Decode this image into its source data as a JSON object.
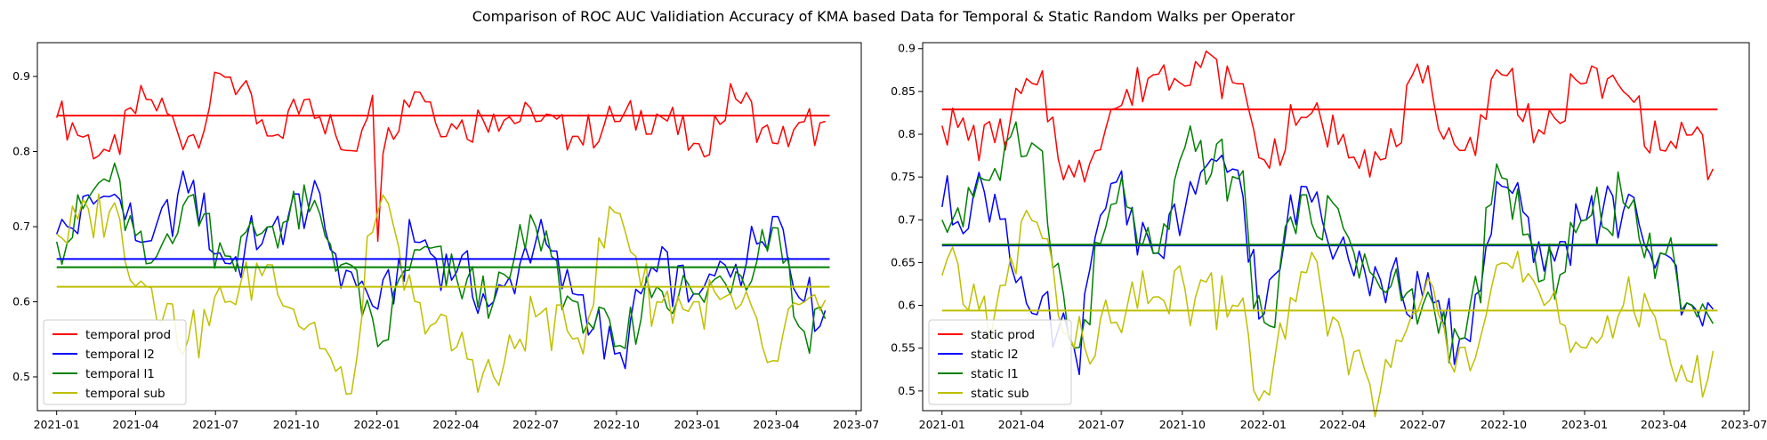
{
  "figure": {
    "title": "Comparison of ROC AUC Validiation Accuracy of KMA based Data for Temporal & Static Random Walks per Operator"
  },
  "chart_data": [
    {
      "type": "line",
      "title": "",
      "xlabel": "",
      "ylabel": "",
      "x_range": [
        "2020-12-10",
        "2023-07-07"
      ],
      "ylim": [
        0.455,
        0.945
      ],
      "x_ticks": [
        "2021-01",
        "2021-04",
        "2021-07",
        "2021-10",
        "2022-01",
        "2022-04",
        "2022-07",
        "2022-10",
        "2023-01",
        "2023-04",
        "2023-07"
      ],
      "y_ticks": [
        0.5,
        0.6,
        0.7,
        0.8,
        0.9
      ],
      "grid": false,
      "legend": "lower-left",
      "series": [
        {
          "name": "temporal prod",
          "color": "#ff0000",
          "mean": 0.848,
          "dates": [
            "2021-01-01",
            "2021-03-01",
            "2021-04-15",
            "2021-06-01",
            "2021-07-15",
            "2021-09-01",
            "2021-10-15",
            "2021-12-01",
            "2021-12-28",
            "2022-01-03",
            "2022-01-10",
            "2022-02-15",
            "2022-04-01",
            "2022-05-15",
            "2022-07-01",
            "2022-08-15",
            "2022-10-01",
            "2022-11-15",
            "2023-01-01",
            "2023-02-15",
            "2023-04-01",
            "2023-05-01",
            "2023-06-01"
          ],
          "values": [
            0.845,
            0.8,
            0.87,
            0.82,
            0.9,
            0.82,
            0.87,
            0.8,
            0.875,
            0.665,
            0.83,
            0.88,
            0.83,
            0.85,
            0.84,
            0.82,
            0.84,
            0.85,
            0.81,
            0.87,
            0.81,
            0.84,
            0.82
          ]
        },
        {
          "name": "temporal l2",
          "color": "#0000ff",
          "mean": 0.657,
          "dates": [
            "2021-01-01",
            "2021-03-01",
            "2021-04-15",
            "2021-06-01",
            "2021-07-15",
            "2021-09-01",
            "2021-10-15",
            "2021-12-01",
            "2022-01-01",
            "2022-02-15",
            "2022-04-01",
            "2022-05-15",
            "2022-07-01",
            "2022-08-15",
            "2022-10-01",
            "2022-11-15",
            "2023-01-01",
            "2023-02-15",
            "2023-04-01",
            "2023-05-01",
            "2023-06-01"
          ],
          "values": [
            0.69,
            0.74,
            0.68,
            0.745,
            0.65,
            0.7,
            0.73,
            0.64,
            0.59,
            0.68,
            0.64,
            0.6,
            0.68,
            0.61,
            0.53,
            0.64,
            0.61,
            0.65,
            0.715,
            0.6,
            0.585
          ]
        },
        {
          "name": "temporal l1",
          "color": "#008000",
          "mean": 0.646,
          "dates": [
            "2021-01-01",
            "2021-03-01",
            "2021-04-15",
            "2021-06-01",
            "2021-07-15",
            "2021-09-01",
            "2021-10-15",
            "2021-12-01",
            "2022-01-01",
            "2022-02-15",
            "2022-04-01",
            "2022-05-15",
            "2022-07-01",
            "2022-08-15",
            "2022-10-01",
            "2022-11-15",
            "2023-01-01",
            "2023-02-15",
            "2023-04-01",
            "2023-05-01",
            "2023-06-01"
          ],
          "values": [
            0.68,
            0.76,
            0.65,
            0.74,
            0.66,
            0.7,
            0.72,
            0.65,
            0.54,
            0.67,
            0.63,
            0.6,
            0.7,
            0.6,
            0.54,
            0.62,
            0.61,
            0.64,
            0.7,
            0.56,
            0.6
          ]
        },
        {
          "name": "temporal sub",
          "color": "#bfbf00",
          "mean": 0.62,
          "dates": [
            "2021-01-01",
            "2021-03-01",
            "2021-04-15",
            "2021-06-01",
            "2021-07-15",
            "2021-09-01",
            "2021-10-15",
            "2021-12-01",
            "2022-01-01",
            "2022-02-15",
            "2022-04-01",
            "2022-05-15",
            "2022-07-01",
            "2022-08-15",
            "2022-10-01",
            "2022-11-15",
            "2023-01-01",
            "2023-02-15",
            "2023-04-01",
            "2023-05-01",
            "2023-06-01"
          ],
          "values": [
            0.69,
            0.72,
            0.62,
            0.55,
            0.6,
            0.65,
            0.57,
            0.475,
            0.72,
            0.6,
            0.54,
            0.5,
            0.58,
            0.55,
            0.72,
            0.6,
            0.6,
            0.59,
            0.52,
            0.6,
            0.57
          ]
        }
      ]
    },
    {
      "type": "line",
      "title": "",
      "xlabel": "",
      "ylabel": "",
      "x_range": [
        "2020-12-10",
        "2023-07-07"
      ],
      "ylim": [
        0.477,
        0.907
      ],
      "x_ticks": [
        "2021-01",
        "2021-04",
        "2021-07",
        "2021-10",
        "2022-01",
        "2022-04",
        "2022-07",
        "2022-10",
        "2023-01",
        "2023-04",
        "2023-07"
      ],
      "y_ticks": [
        0.5,
        0.55,
        0.6,
        0.65,
        0.7,
        0.75,
        0.8,
        0.85,
        0.9
      ],
      "grid": false,
      "legend": "lower-left",
      "series": [
        {
          "name": "static prod",
          "color": "#ff0000",
          "mean": 0.829,
          "dates": [
            "2021-01-01",
            "2021-03-01",
            "2021-04-15",
            "2021-06-01",
            "2021-07-15",
            "2021-09-01",
            "2021-10-15",
            "2021-12-01",
            "2022-01-01",
            "2022-02-15",
            "2022-04-01",
            "2022-05-15",
            "2022-07-01",
            "2022-08-15",
            "2022-10-01",
            "2022-11-15",
            "2023-01-01",
            "2023-02-15",
            "2023-04-01",
            "2023-05-01",
            "2023-06-01"
          ],
          "values": [
            0.81,
            0.79,
            0.86,
            0.75,
            0.83,
            0.87,
            0.885,
            0.86,
            0.77,
            0.82,
            0.8,
            0.77,
            0.86,
            0.78,
            0.87,
            0.8,
            0.86,
            0.85,
            0.78,
            0.8,
            0.745
          ]
        },
        {
          "name": "static l2",
          "color": "#0000ff",
          "mean": 0.67,
          "dates": [
            "2021-01-01",
            "2021-03-01",
            "2021-04-15",
            "2021-06-01",
            "2021-07-15",
            "2021-09-01",
            "2021-10-15",
            "2021-12-01",
            "2022-01-01",
            "2022-02-15",
            "2022-04-01",
            "2022-05-15",
            "2022-07-01",
            "2022-08-15",
            "2022-10-01",
            "2022-11-15",
            "2023-01-01",
            "2023-02-15",
            "2023-04-01",
            "2023-05-01",
            "2023-06-01"
          ],
          "values": [
            0.715,
            0.73,
            0.59,
            0.55,
            0.745,
            0.66,
            0.73,
            0.76,
            0.59,
            0.74,
            0.68,
            0.63,
            0.61,
            0.56,
            0.74,
            0.64,
            0.7,
            0.71,
            0.66,
            0.6,
            0.62
          ]
        },
        {
          "name": "static l1",
          "color": "#008000",
          "mean": 0.671,
          "dates": [
            "2021-01-01",
            "2021-03-01",
            "2021-04-15",
            "2021-06-01",
            "2021-07-15",
            "2021-09-01",
            "2021-10-15",
            "2021-12-01",
            "2022-01-01",
            "2022-02-15",
            "2022-04-01",
            "2022-05-15",
            "2022-07-01",
            "2022-08-15",
            "2022-10-01",
            "2022-11-15",
            "2023-01-01",
            "2023-02-15",
            "2023-04-01",
            "2023-05-01",
            "2023-06-01"
          ],
          "values": [
            0.7,
            0.76,
            0.79,
            0.55,
            0.72,
            0.66,
            0.78,
            0.75,
            0.58,
            0.73,
            0.69,
            0.62,
            0.6,
            0.56,
            0.75,
            0.63,
            0.7,
            0.72,
            0.66,
            0.6,
            0.58
          ]
        },
        {
          "name": "static sub",
          "color": "#bfbf00",
          "mean": 0.594,
          "dates": [
            "2021-01-01",
            "2021-03-01",
            "2021-04-15",
            "2021-06-01",
            "2021-07-15",
            "2021-09-01",
            "2021-10-15",
            "2021-12-01",
            "2022-01-01",
            "2022-02-15",
            "2022-04-01",
            "2022-05-15",
            "2022-07-01",
            "2022-08-15",
            "2022-10-01",
            "2022-11-15",
            "2023-01-01",
            "2023-02-15",
            "2023-04-01",
            "2023-05-01",
            "2023-06-01"
          ],
          "values": [
            0.635,
            0.59,
            0.7,
            0.55,
            0.58,
            0.61,
            0.61,
            0.6,
            0.5,
            0.64,
            0.56,
            0.5,
            0.61,
            0.55,
            0.65,
            0.6,
            0.55,
            0.6,
            0.56,
            0.51,
            0.51
          ]
        }
      ]
    }
  ]
}
